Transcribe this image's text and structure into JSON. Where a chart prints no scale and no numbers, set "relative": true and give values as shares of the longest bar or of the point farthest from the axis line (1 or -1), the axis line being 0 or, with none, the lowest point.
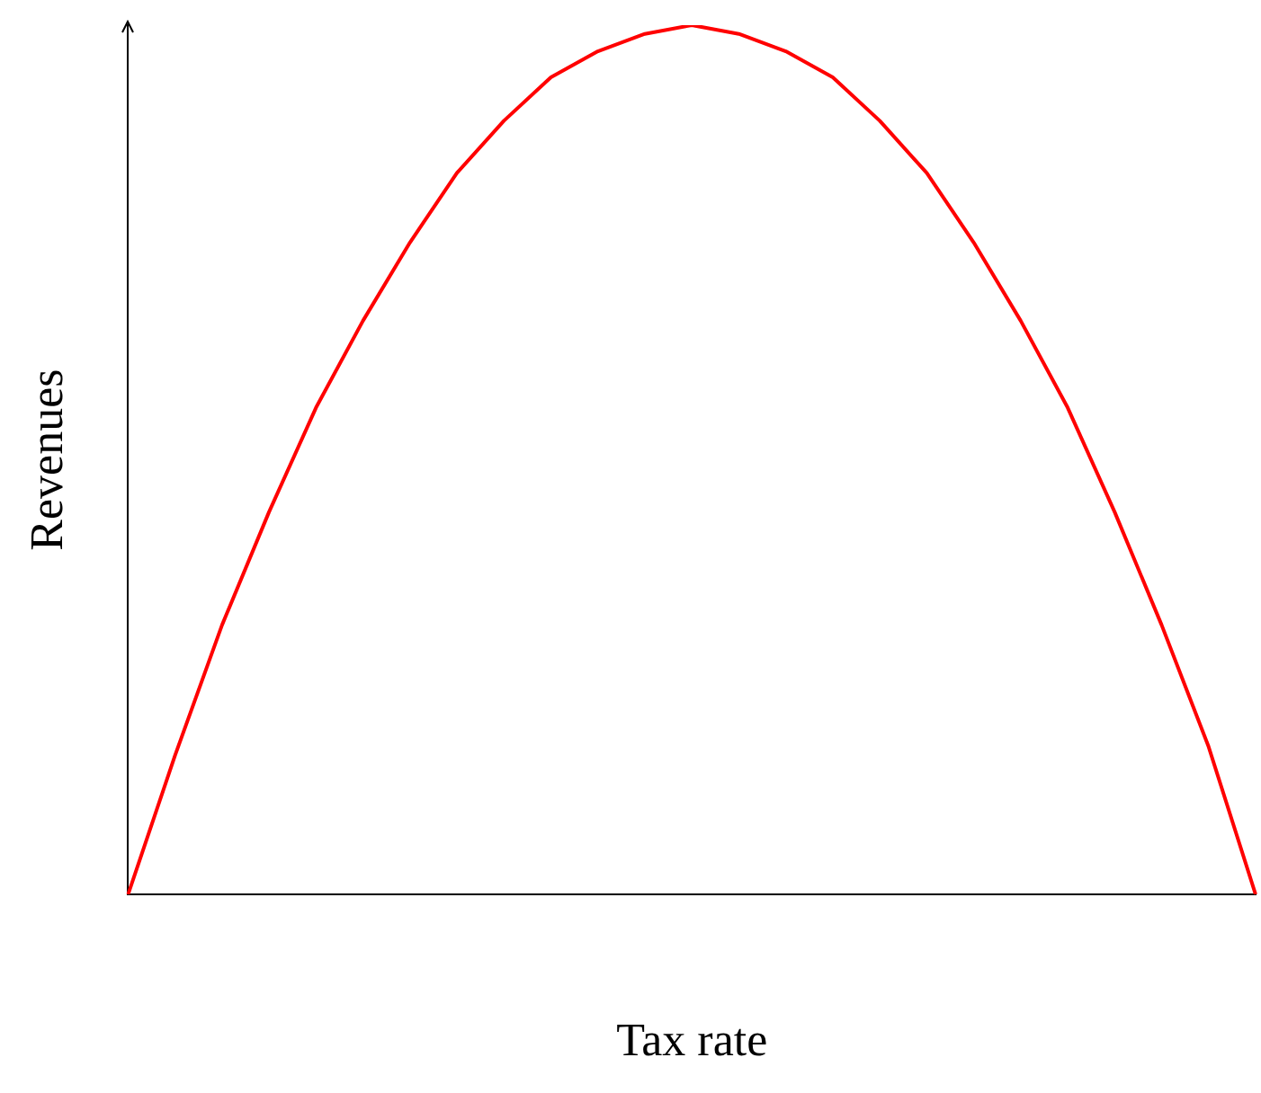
{
  "chart_data": {
    "type": "line",
    "xlabel": "Tax rate",
    "ylabel": "Revenues",
    "relative": true,
    "grid": false,
    "legend": false,
    "marker": "none",
    "line_style": "solid",
    "categories": [
      null,
      null,
      null,
      null,
      null,
      null,
      null,
      null,
      null,
      null,
      null,
      null,
      null,
      null,
      null,
      null,
      null,
      null,
      null,
      null,
      null,
      null,
      null,
      null,
      null
    ],
    "series": [
      {
        "color": "#ff0000",
        "values": [
          0,
          0.16,
          0.31,
          0.44,
          0.56,
          0.66,
          0.75,
          0.83,
          0.89,
          0.94,
          0.97,
          0.99,
          1,
          0.99,
          0.97,
          0.94,
          0.89,
          0.83,
          0.75,
          0.66,
          0.56,
          0.44,
          0.31,
          0.17,
          0
        ]
      }
    ]
  }
}
